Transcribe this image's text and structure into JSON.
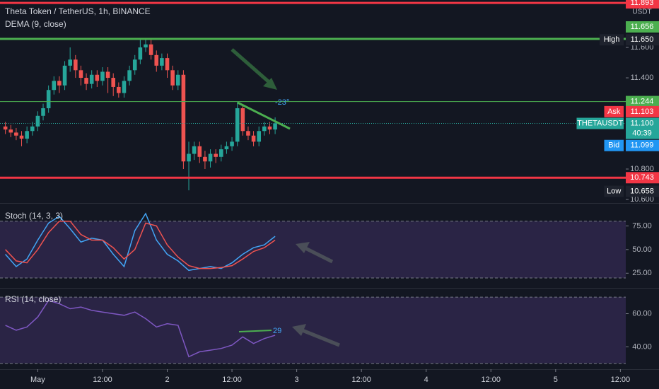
{
  "chart_data": [
    {
      "type": "candlestick",
      "title": "Theta Token / TetherUS, 1h, BINANCE",
      "indicator": "DEMA (9, close)",
      "up_color": "#26a69a",
      "down_color": "#ef5350",
      "xlim": [
        -7,
        109
      ],
      "ylim": [
        10.586,
        11.912
      ],
      "unit": "USDT",
      "yticks": [
        {
          "value": 11.6,
          "label": "11.600"
        },
        {
          "value": 11.4,
          "label": "11.400"
        },
        {
          "value": 10.8,
          "label": "10.800"
        },
        {
          "value": 10.6,
          "label": "10.600"
        }
      ],
      "x": [
        -6,
        -5,
        -4,
        -3,
        -2,
        -1,
        0,
        1,
        2,
        3,
        4,
        5,
        6,
        7,
        8,
        9,
        10,
        11,
        12,
        13,
        14,
        15,
        16,
        17,
        18,
        19,
        20,
        21,
        22,
        23,
        24,
        25,
        26,
        27,
        28,
        29,
        30,
        31,
        32,
        33,
        34,
        35,
        36,
        37,
        38,
        39,
        40,
        41,
        42,
        43,
        44
      ],
      "open": [
        11.08,
        11.06,
        11.04,
        11.02,
        11.0,
        11.05,
        11.08,
        11.15,
        11.2,
        11.32,
        11.38,
        11.35,
        11.48,
        11.52,
        11.45,
        11.4,
        11.36,
        11.42,
        11.38,
        11.44,
        11.4,
        11.34,
        11.3,
        11.38,
        11.45,
        11.52,
        11.6,
        11.62,
        11.55,
        11.48,
        11.53,
        11.45,
        11.35,
        11.42,
        10.85,
        10.9,
        10.95,
        10.88,
        10.85,
        10.9,
        10.88,
        10.93,
        10.95,
        10.98,
        11.2,
        11.05,
        11.02,
        10.98,
        11.05,
        11.08,
        11.06
      ],
      "high": [
        11.11,
        11.09,
        11.07,
        11.05,
        11.08,
        11.11,
        11.18,
        11.23,
        11.35,
        11.41,
        11.41,
        11.51,
        11.6,
        11.55,
        11.48,
        11.43,
        11.45,
        11.45,
        11.47,
        11.47,
        11.43,
        11.37,
        11.41,
        11.48,
        11.55,
        11.65,
        11.65,
        11.65,
        11.58,
        11.56,
        11.56,
        11.48,
        11.45,
        11.45,
        10.98,
        10.98,
        10.98,
        10.92,
        10.93,
        10.93,
        10.96,
        10.98,
        11.01,
        11.24,
        11.22,
        11.08,
        11.05,
        11.08,
        11.11,
        11.11,
        11.14
      ],
      "low": [
        11.03,
        11.01,
        10.99,
        10.95,
        10.97,
        11.02,
        11.05,
        11.12,
        11.17,
        11.29,
        11.3,
        11.32,
        11.44,
        11.4,
        11.35,
        11.32,
        11.33,
        11.34,
        11.35,
        11.3,
        11.28,
        11.27,
        11.27,
        11.35,
        11.42,
        11.49,
        11.57,
        11.52,
        11.44,
        11.45,
        11.4,
        11.32,
        11.32,
        10.8,
        10.66,
        10.86,
        10.84,
        10.8,
        10.81,
        10.84,
        10.85,
        10.9,
        10.92,
        10.95,
        11.02,
        10.99,
        10.95,
        10.95,
        11.02,
        11.03,
        11.03
      ],
      "close": [
        11.06,
        11.04,
        11.02,
        11.0,
        11.05,
        11.08,
        11.15,
        11.2,
        11.32,
        11.38,
        11.35,
        11.48,
        11.52,
        11.45,
        11.4,
        11.36,
        11.42,
        11.38,
        11.44,
        11.4,
        11.34,
        11.3,
        11.38,
        11.45,
        11.52,
        11.6,
        11.62,
        11.55,
        11.48,
        11.53,
        11.45,
        11.35,
        11.42,
        10.85,
        10.9,
        10.95,
        10.88,
        10.85,
        10.9,
        10.88,
        10.93,
        10.95,
        10.98,
        11.2,
        11.05,
        11.02,
        10.98,
        11.05,
        11.08,
        11.06,
        11.1
      ],
      "levels": [
        {
          "value": 11.893,
          "label": "11.893",
          "color": "#f23645",
          "width": 3
        },
        {
          "value": 11.656,
          "label": "11.656",
          "color": "#4caf50",
          "width": 3
        },
        {
          "value": 11.244,
          "label": "11.244",
          "color": "#4caf50",
          "width": 1
        },
        {
          "value": 10.743,
          "label": "10.743",
          "color": "#f23645",
          "width": 3
        }
      ],
      "markers": [
        {
          "name": "High",
          "value": 11.65,
          "label": "11.650",
          "color": "#1e222d"
        },
        {
          "name": "Ask",
          "value": 11.103,
          "label": "11.103",
          "color": "#f23645"
        },
        {
          "name": "THETAUSDT",
          "value": 11.1,
          "label": "11.100",
          "countdown": "40:39",
          "color": "#26a69a"
        },
        {
          "name": "Bid",
          "value": 11.099,
          "label": "11.099",
          "color": "#2196f3"
        },
        {
          "name": "Low",
          "value": 10.658,
          "label": "10.658",
          "color": "#1e222d"
        }
      ],
      "annotation": "-23°"
    },
    {
      "type": "line",
      "title": "Stoch (14, 3, 3)",
      "xlim": [
        -7,
        109
      ],
      "ylim": [
        11,
        97
      ],
      "bands": [
        20,
        80
      ],
      "yticks": [
        {
          "value": 75,
          "label": "75.00"
        },
        {
          "value": 50,
          "label": "50.00"
        },
        {
          "value": 25,
          "label": "25.00"
        }
      ],
      "x": [
        -6,
        -4,
        -2,
        0,
        2,
        4,
        6,
        8,
        10,
        12,
        14,
        16,
        18,
        20,
        22,
        24,
        26,
        28,
        30,
        32,
        34,
        36,
        38,
        40,
        42,
        44
      ],
      "series": [
        {
          "color": "#42a5f5",
          "values": [
            45,
            32,
            40,
            60,
            78,
            85,
            72,
            58,
            62,
            60,
            45,
            32,
            70,
            88,
            60,
            45,
            38,
            28,
            30,
            32,
            30,
            36,
            45,
            52,
            55,
            64
          ]
        },
        {
          "color": "#ef5350",
          "values": [
            50,
            38,
            36,
            50,
            68,
            80,
            80,
            66,
            60,
            60,
            52,
            40,
            50,
            78,
            75,
            55,
            42,
            33,
            30,
            30,
            31,
            33,
            40,
            48,
            52,
            60
          ]
        }
      ]
    },
    {
      "type": "line",
      "title": "RSI (14, close)",
      "xlim": [
        -7,
        109
      ],
      "ylim": [
        26.5,
        74.3
      ],
      "bands": [
        30,
        70
      ],
      "yticks": [
        {
          "value": 60,
          "label": "60.00"
        },
        {
          "value": 40,
          "label": "40.00"
        }
      ],
      "xticks": [
        {
          "value": 0,
          "label": "May"
        },
        {
          "value": 12,
          "label": "12:00"
        },
        {
          "value": 24,
          "label": "2"
        },
        {
          "value": 36,
          "label": "12:00"
        },
        {
          "value": 48,
          "label": "3"
        },
        {
          "value": 60,
          "label": "12:00"
        },
        {
          "value": 72,
          "label": "4"
        },
        {
          "value": 84,
          "label": "12:00"
        },
        {
          "value": 96,
          "label": "5"
        },
        {
          "value": 108,
          "label": "12:00"
        }
      ],
      "x": [
        -6,
        -4,
        -2,
        0,
        2,
        4,
        6,
        8,
        10,
        12,
        14,
        16,
        18,
        20,
        22,
        24,
        26,
        28,
        30,
        32,
        34,
        36,
        38,
        40,
        42,
        44
      ],
      "series": [
        {
          "color": "#7e57c2",
          "values": [
            53,
            50,
            52,
            58,
            68,
            66,
            63,
            64,
            62,
            61,
            60,
            59,
            61,
            57,
            52,
            54,
            53,
            34,
            37,
            38,
            39,
            41,
            46,
            42,
            45,
            47
          ]
        }
      ],
      "annotation": "29"
    }
  ]
}
